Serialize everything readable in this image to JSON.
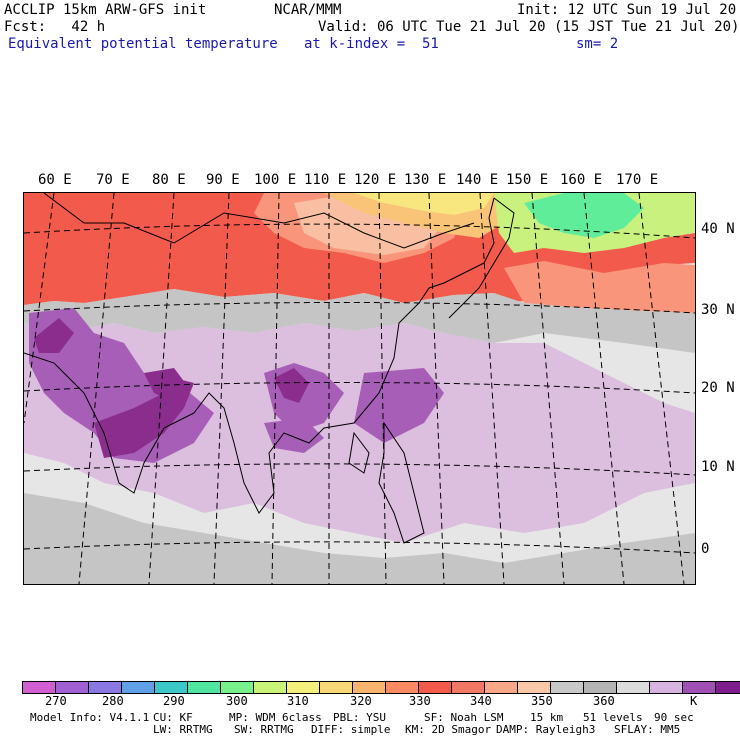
{
  "header": {
    "model": "ACCLIP 15km ARW-GFS init",
    "org": "NCAR/MMM",
    "init": "Init: 12 UTC Sun 19 Jul 20",
    "fcst": "Fcst:   42 h",
    "valid": "Valid: 06 UTC Tue 21 Jul 20 (15 JST Tue 21 Jul 20)",
    "field": "Equivalent potential temperature",
    "level": "at k-index =  51",
    "smooth": "sm= 2"
  },
  "map": {
    "lon_labels": [
      "60 E",
      "70 E",
      "80 E",
      "90 E",
      "100 E",
      "110 E",
      "120 E",
      "130 E",
      "140 E",
      "150 E",
      "160 E",
      "170 E"
    ],
    "lat_labels": [
      "40 N",
      "30 N",
      "20 N",
      "10 N",
      "0"
    ],
    "colors": {
      "very_warm": "#f25a4b",
      "warm": "#f9957b",
      "peach": "#f8bfa2",
      "orange": "#f9c478",
      "yellow": "#f8e67f",
      "lime": "#c9f17e",
      "green": "#60ed9a",
      "gray": "#c5c5c5",
      "light_gray": "#e6e6e6",
      "lilac": "#dcbedf",
      "violet": "#a75eb6",
      "purple": "#8a2d8c"
    }
  },
  "colorbar": {
    "colors": [
      "#d25fd2",
      "#a05fd2",
      "#8c78e1",
      "#5fa0e6",
      "#3cc8c8",
      "#50e6a0",
      "#78f08c",
      "#c8f578",
      "#f5f07d",
      "#f8d878",
      "#f8b46e",
      "#f88a64",
      "#f25a4b",
      "#f07864",
      "#f8a888",
      "#f8c8a8",
      "#c8c8c8",
      "#b4b4b4",
      "#dcdcdc",
      "#d8b4e1",
      "#a050b4",
      "#7d1e8c"
    ],
    "ticks": [
      "270",
      "280",
      "290",
      "300",
      "310",
      "320",
      "330",
      "340",
      "350",
      "360",
      "K"
    ]
  },
  "footer": {
    "line1": [
      "Model Info: V4.1.1",
      "CU: KF",
      "MP: WDM 6class",
      "PBL: YSU",
      "SF: Noah LSM",
      "15 km",
      "51 levels",
      "90 sec"
    ],
    "line2": [
      "LW: RRTMG",
      "SW: RRTMG",
      "DIFF: simple",
      "KM: 2D Smagor",
      "DAMP: Rayleigh3",
      "SFLAY: MM5"
    ]
  }
}
